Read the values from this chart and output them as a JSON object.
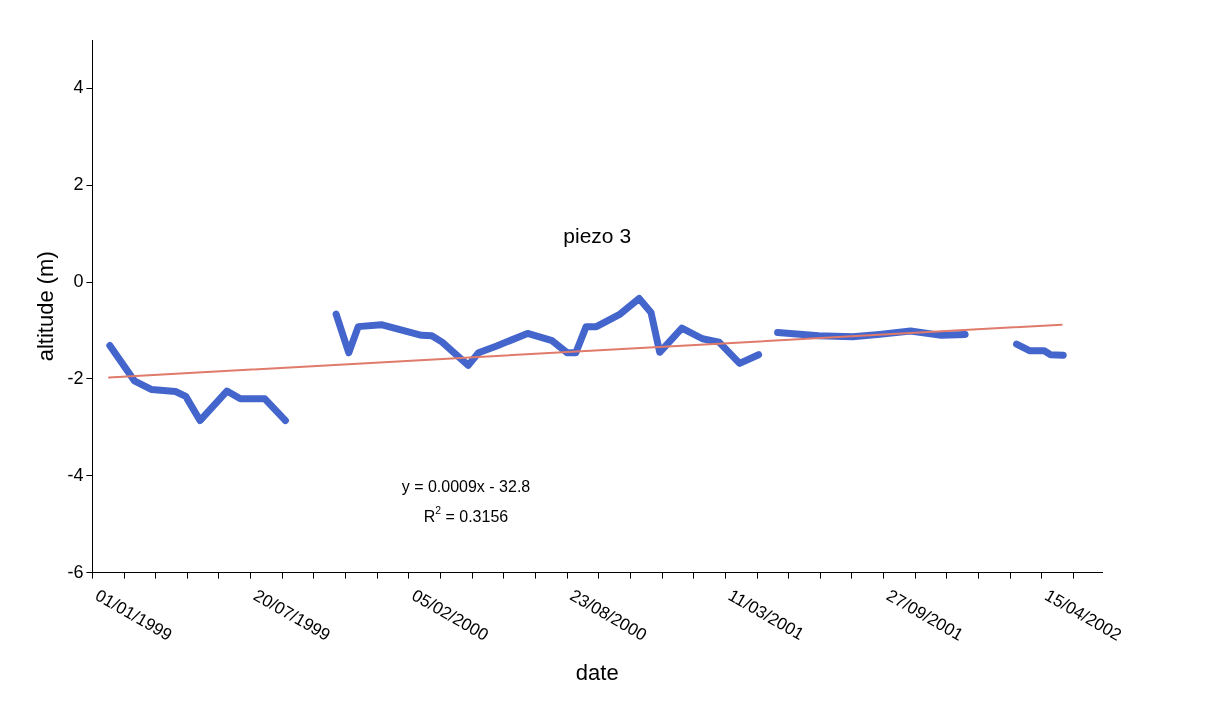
{
  "chart_data": {
    "type": "line",
    "title": "piezo 3",
    "xlabel": "date",
    "ylabel": "altitude (m)",
    "annotations": [
      "y = 0.0009x - 32.8",
      "R$^{2}$ = 0.3156"
    ],
    "xlim": [
      "1999-01-01",
      "2002-06-30"
    ],
    "xticks": [
      {
        "value": "1999-01-01",
        "label": "01/01/1999"
      },
      {
        "value": "1999-02-10",
        "label": null
      },
      {
        "value": "1999-03-22",
        "label": null
      },
      {
        "value": "1999-05-01",
        "label": null
      },
      {
        "value": "1999-06-10",
        "label": null
      },
      {
        "value": "1999-07-20",
        "label": "20/07/1999"
      },
      {
        "value": "1999-08-29",
        "label": null
      },
      {
        "value": "1999-10-08",
        "label": null
      },
      {
        "value": "1999-11-17",
        "label": null
      },
      {
        "value": "1999-12-27",
        "label": null
      },
      {
        "value": "2000-02-05",
        "label": "05/02/2000"
      },
      {
        "value": "2000-03-16",
        "label": null
      },
      {
        "value": "2000-04-25",
        "label": null
      },
      {
        "value": "2000-06-04",
        "label": null
      },
      {
        "value": "2000-07-14",
        "label": null
      },
      {
        "value": "2000-08-23",
        "label": "23/08/2000"
      },
      {
        "value": "2000-10-02",
        "label": null
      },
      {
        "value": "2000-11-11",
        "label": null
      },
      {
        "value": "2000-12-21",
        "label": null
      },
      {
        "value": "2001-01-30",
        "label": null
      },
      {
        "value": "2001-03-11",
        "label": "11/03/2001"
      },
      {
        "value": "2001-04-20",
        "label": null
      },
      {
        "value": "2001-05-30",
        "label": null
      },
      {
        "value": "2001-07-09",
        "label": null
      },
      {
        "value": "2001-08-18",
        "label": null
      },
      {
        "value": "2001-09-27",
        "label": "27/09/2001"
      },
      {
        "value": "2001-11-06",
        "label": null
      },
      {
        "value": "2001-12-16",
        "label": null
      },
      {
        "value": "2002-01-25",
        "label": null
      },
      {
        "value": "2002-03-06",
        "label": null
      },
      {
        "value": "2002-04-15",
        "label": "15/04/2002"
      },
      {
        "value": "2002-05-25",
        "label": null
      }
    ],
    "ylim": [
      -6,
      5
    ],
    "yticks": [
      -6,
      -4,
      -2,
      0,
      2,
      4
    ],
    "grid": false,
    "legend": false,
    "marker": "none",
    "line_style": "solid",
    "series": [
      {
        "color": "#4466cc",
        "x": [
          "1999-01-23",
          "1999-02-23",
          "1999-03-17",
          "1999-04-16",
          "1999-04-29",
          "1999-05-17",
          "1999-06-20",
          "1999-07-07",
          "1999-08-07",
          "1999-09-02",
          "1999-10-01",
          "1999-11-05",
          "1999-11-21",
          "1999-12-03",
          "2000-01-01",
          "2000-02-21",
          "2000-03-05",
          "2000-03-18",
          "2000-04-20",
          "2000-05-03",
          "2000-05-26",
          "2000-07-04",
          "2000-08-04",
          "2000-08-23",
          "2000-09-03",
          "2000-09-16",
          "2000-09-29",
          "2000-10-29",
          "2000-11-22",
          "2000-12-07",
          "2000-12-18",
          "2001-01-15",
          "2001-02-10",
          "2001-03-03",
          "2001-03-29",
          "2001-04-22",
          "2001-05-05",
          "2001-05-16",
          "2001-07-07",
          "2001-08-19",
          "2001-09-22",
          "2001-10-31",
          "2001-12-09",
          "2002-01-08",
          "2002-02-10",
          "2002-03-14",
          "2002-03-31",
          "2002-04-18",
          "2002-04-26",
          "2002-05-12"
        ],
        "values": [
          -1.31,
          -2.04,
          -2.22,
          -2.26,
          -2.36,
          -2.86,
          -2.25,
          -2.41,
          -2.41,
          -2.86,
          null,
          -0.66,
          -1.46,
          -0.92,
          -0.88,
          -1.1,
          -1.11,
          -1.24,
          -1.72,
          -1.46,
          -1.32,
          -1.06,
          -1.21,
          -1.46,
          -1.46,
          -0.92,
          -0.92,
          -0.66,
          -0.34,
          -0.63,
          -1.45,
          -0.95,
          -1.17,
          -1.24,
          -1.68,
          -1.5,
          null,
          -1.04,
          -1.11,
          -1.13,
          -1.08,
          -1.01,
          -1.1,
          -1.08,
          null,
          -1.28,
          -1.42,
          -1.42,
          -1.5,
          -1.51
        ]
      },
      {
        "type": "line",
        "color": "#e07a6a",
        "x": [
          "1999-01-22",
          "2002-05-10"
        ],
        "values": [
          -1.97,
          -0.88
        ]
      }
    ]
  }
}
